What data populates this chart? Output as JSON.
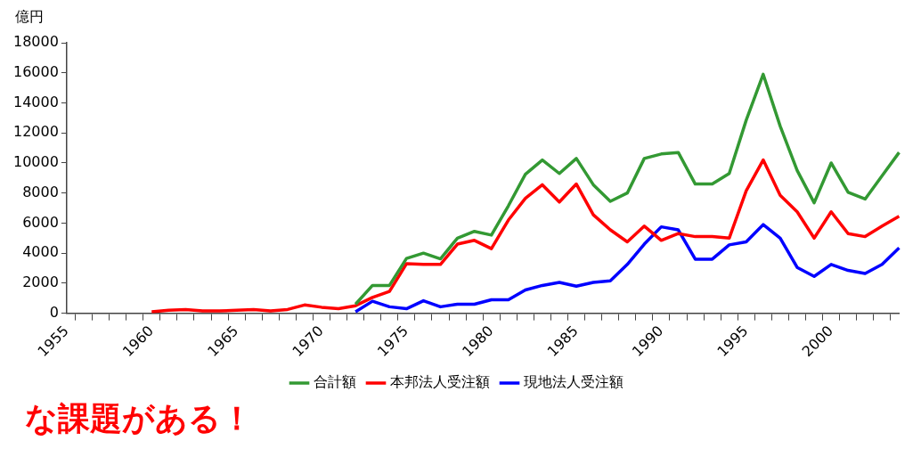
{
  "chart_data": {
    "type": "line",
    "ylabel": "億円",
    "categories": [
      "1955",
      null,
      null,
      null,
      null,
      "1960",
      null,
      null,
      null,
      null,
      "1965",
      null,
      null,
      null,
      null,
      "1970",
      null,
      null,
      null,
      null,
      "1975",
      null,
      null,
      null,
      null,
      "1980",
      null,
      null,
      null,
      null,
      "1985",
      null,
      null,
      null,
      null,
      "1990",
      null,
      null,
      null,
      null,
      "1995",
      null,
      null,
      null,
      null,
      "2000",
      null,
      null,
      null,
      null
    ],
    "series": [
      {
        "name": "合計額",
        "color": "#339933",
        "values": [
          null,
          null,
          null,
          null,
          null,
          null,
          null,
          null,
          null,
          null,
          null,
          null,
          null,
          null,
          null,
          null,
          null,
          600,
          1850,
          1850,
          3650,
          4000,
          3620,
          5000,
          5450,
          5200,
          7150,
          9250,
          10200,
          9300,
          10300,
          8550,
          7450,
          8000,
          10300,
          10600,
          10700,
          8600,
          8600,
          9300,
          12850,
          15900,
          12450,
          9500,
          7350,
          10000,
          8050,
          7600,
          9150,
          10700
        ]
      },
      {
        "name": "本邦法人受注額",
        "color": "#ff0000",
        "values": [
          null,
          null,
          null,
          null,
          null,
          100,
          200,
          250,
          150,
          150,
          200,
          250,
          150,
          250,
          550,
          400,
          300,
          500,
          1050,
          1450,
          3300,
          3250,
          3250,
          4600,
          4850,
          4300,
          6200,
          7650,
          8550,
          7400,
          8600,
          6550,
          5550,
          4750,
          5800,
          4850,
          5300,
          5100,
          5100,
          5000,
          8150,
          10200,
          7850,
          6750,
          5000,
          6750,
          5300,
          5100,
          5800,
          6450
        ]
      },
      {
        "name": "現地法人受注額",
        "color": "#0000ff",
        "values": [
          null,
          null,
          null,
          null,
          null,
          null,
          null,
          null,
          null,
          null,
          null,
          null,
          null,
          null,
          null,
          null,
          null,
          100,
          800,
          430,
          300,
          830,
          430,
          600,
          600,
          900,
          900,
          1550,
          1850,
          2050,
          1800,
          2050,
          2150,
          3250,
          4600,
          5750,
          5550,
          3600,
          3600,
          4550,
          4750,
          5900,
          5000,
          3050,
          2450,
          3250,
          2850,
          2650,
          3250,
          4350
        ]
      }
    ],
    "ylim": [
      0,
      18000
    ],
    "yticks": [
      0,
      2000,
      4000,
      6000,
      8000,
      10000,
      12000,
      14000,
      16000,
      18000
    ],
    "grid": false,
    "legend": "bottom",
    "marker": "none",
    "line_style": "solid",
    "annotations": [
      "な課題がある！"
    ]
  }
}
